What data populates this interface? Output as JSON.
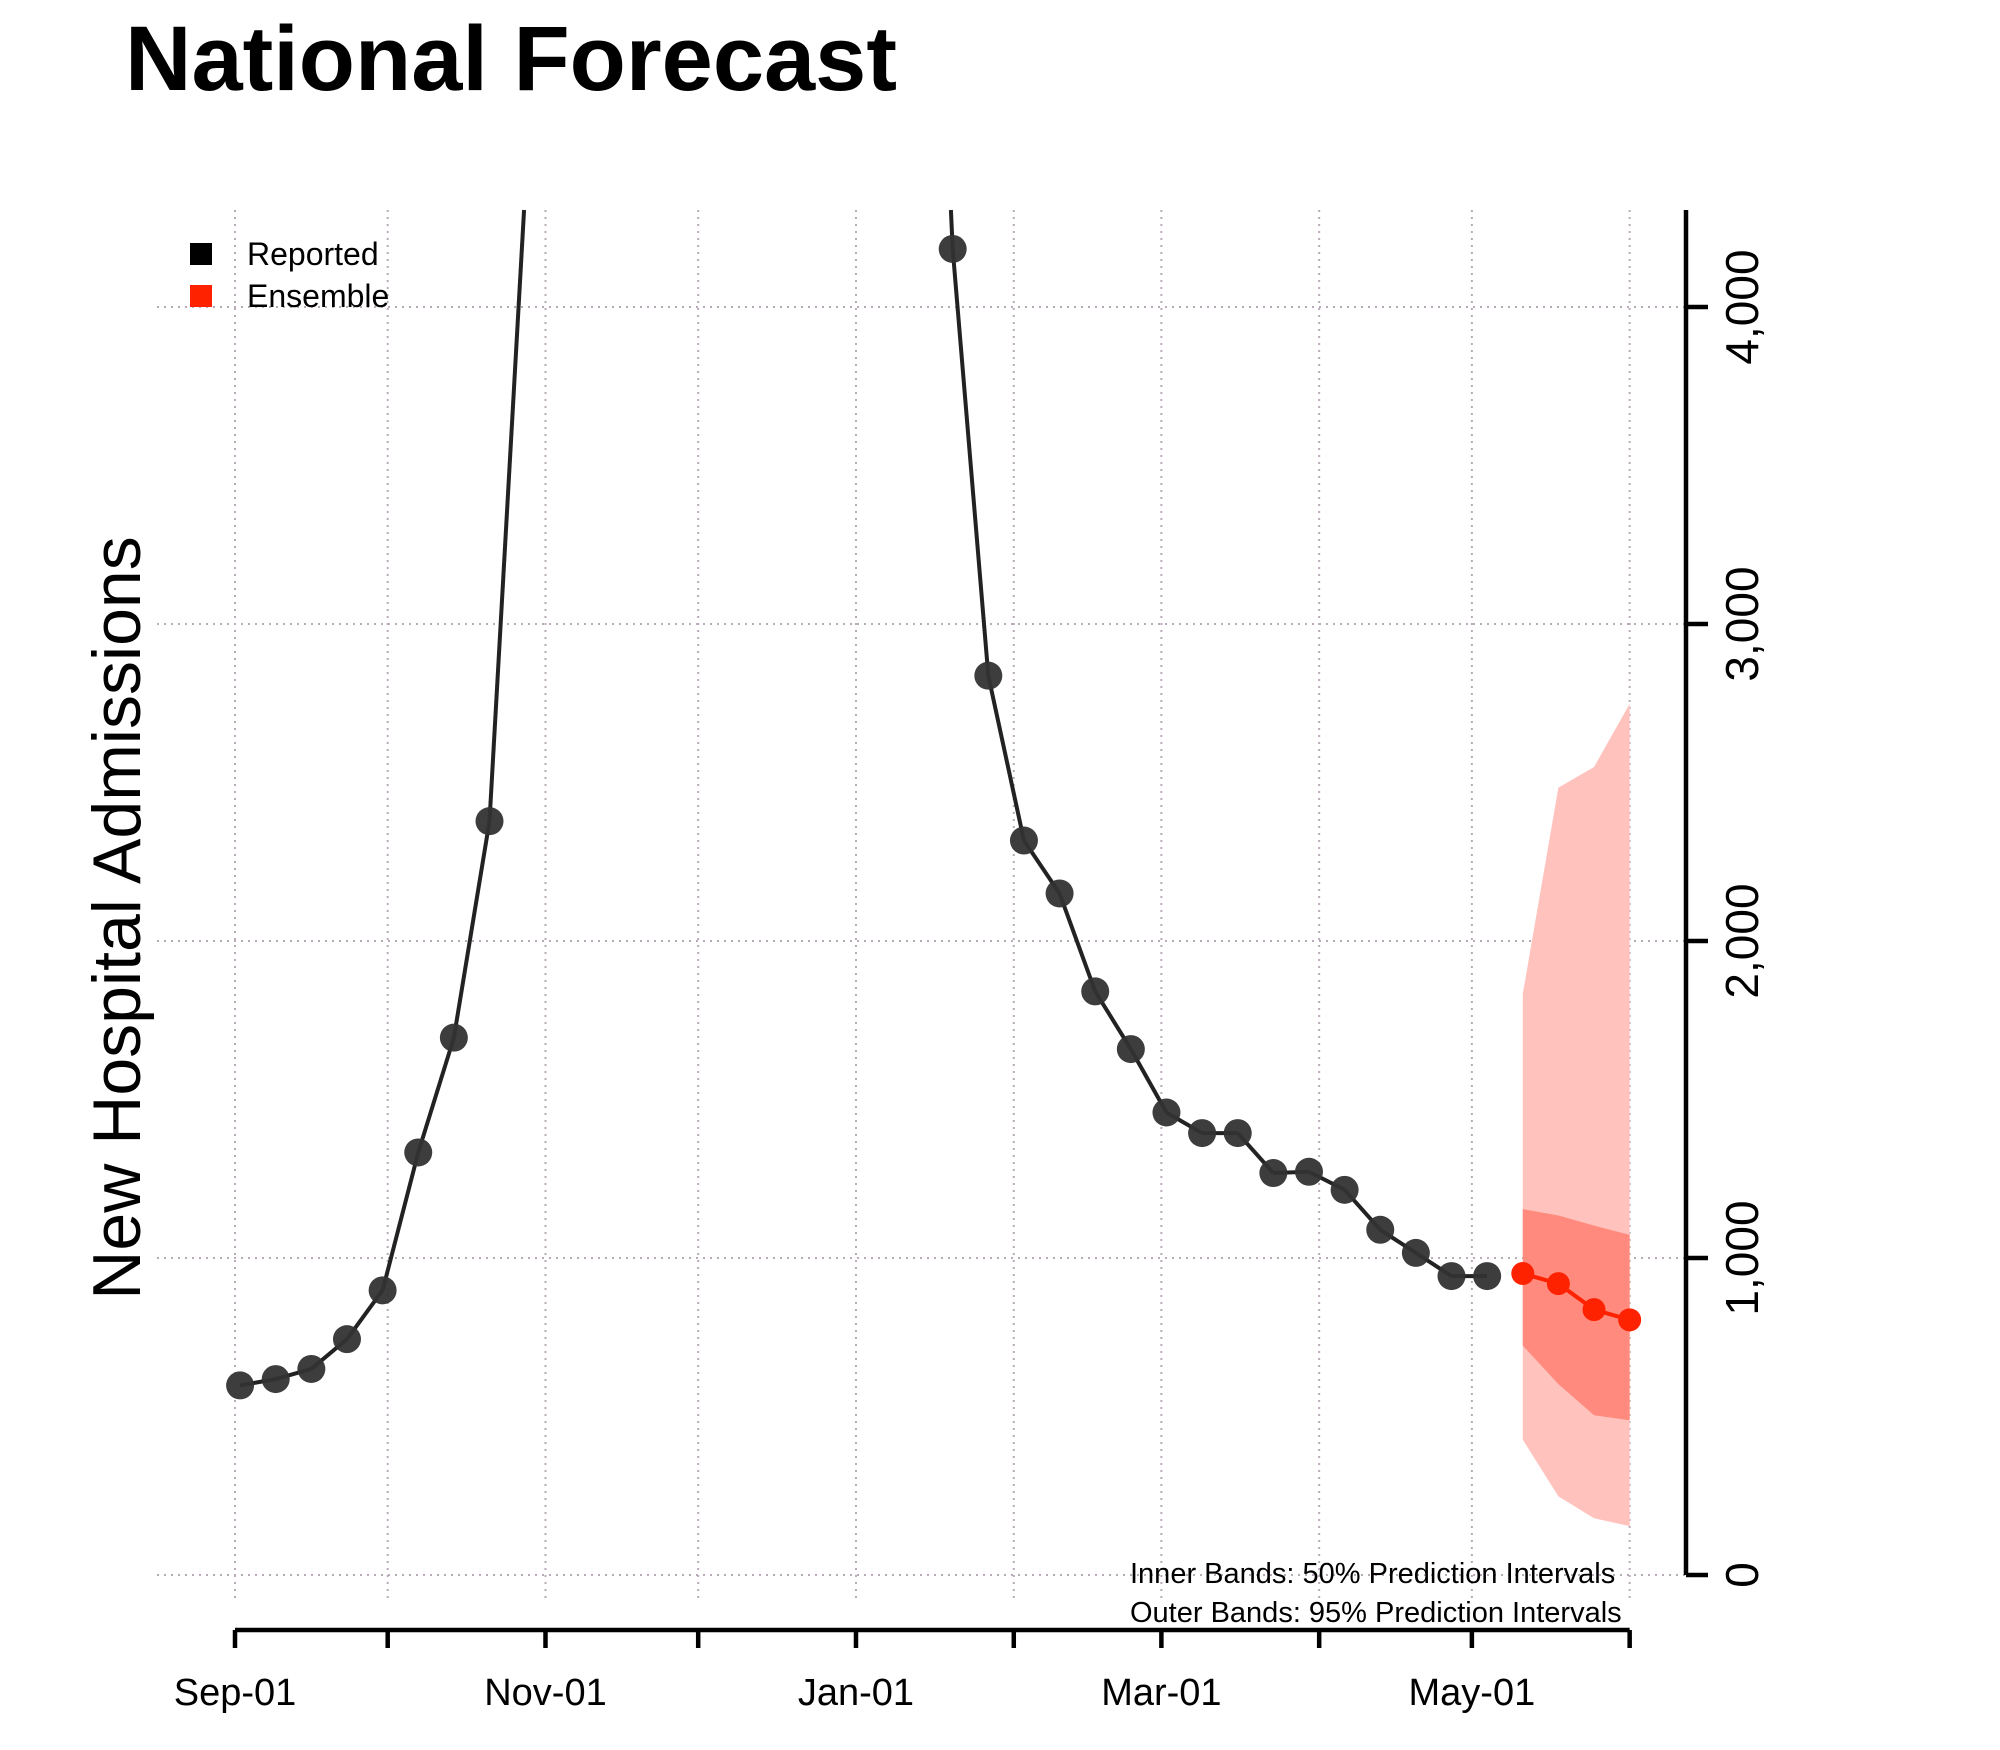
{
  "chart_data": {
    "type": "line",
    "title": "National Forecast",
    "ylabel": "New Hospital Admissions",
    "xlabel": "",
    "ylim": [
      0,
      4300
    ],
    "xlim": [
      "2023-09-01",
      "2024-06-05"
    ],
    "y_axis_side": "right",
    "y_ticks": [
      0,
      1000,
      2000,
      3000,
      4000
    ],
    "y_tick_labels": [
      "0",
      "1,000",
      "2,000",
      "3,000",
      "4,000"
    ],
    "x_ticks": [
      "2023-09-01",
      "2023-10-01",
      "2023-11-01",
      "2023-12-01",
      "2024-01-01",
      "2024-02-01",
      "2024-03-01",
      "2024-04-01",
      "2024-05-01",
      "2024-06-01"
    ],
    "x_tick_labels": [
      {
        "date": "2023-09-01",
        "label": "Sep-01"
      },
      {
        "date": "2023-11-01",
        "label": "Nov-01"
      },
      {
        "date": "2024-01-01",
        "label": "Jan-01"
      },
      {
        "date": "2024-03-01",
        "label": "Mar-01"
      },
      {
        "date": "2024-05-01",
        "label": "May-01"
      }
    ],
    "grid": true,
    "legend": {
      "placement": "top-left",
      "entries": [
        {
          "label": "Reported",
          "color": "#000000"
        },
        {
          "label": "Ensemble",
          "color": "#ff2200"
        }
      ]
    },
    "annotations": [
      "Inner Bands: 50% Prediction Intervals",
      "Outer Bands: 95% Prediction Intervals"
    ],
    "series": [
      {
        "name": "Reported",
        "color": "#333333",
        "x": [
          "2023-09-02",
          "2023-09-09",
          "2023-09-16",
          "2023-09-23",
          "2023-09-30",
          "2023-10-07",
          "2023-10-14",
          "2023-10-21",
          "2023-10-28",
          "2024-01-13",
          "2024-01-20",
          "2024-01-27",
          "2024-02-03",
          "2024-02-10",
          "2024-02-17",
          "2024-02-24",
          "2024-03-02",
          "2024-03-09",
          "2024-03-16",
          "2024-03-23",
          "2024-03-30",
          "2024-04-06",
          "2024-04-13",
          "2024-04-20",
          "2024-04-27",
          "2024-05-04"
        ],
        "values": [
          598,
          618,
          650,
          744,
          898,
          1333,
          1695,
          2378,
          null,
          null,
          4183,
          2837,
          2317,
          2150,
          1841,
          1659,
          1459,
          1394,
          1394,
          1268,
          1272,
          1215,
          1089,
          1016,
          943,
          943
        ]
      },
      {
        "name": "Ensemble",
        "color": "#ff2200",
        "x": [
          "2024-05-11",
          "2024-05-18",
          "2024-05-25",
          "2024-06-01"
        ],
        "values": [
          951,
          919,
          837,
          805
        ],
        "pi50_lower": [
          724,
          602,
          504,
          488
        ],
        "pi50_upper": [
          1154,
          1134,
          1102,
          1073
        ],
        "pi95_lower": [
          427,
          248,
          179,
          154
        ],
        "pi95_upper": [
          1833,
          2484,
          2549,
          2748
        ],
        "pi50_color": "#ff8a7d",
        "pi95_color": "#ffc2bd"
      }
    ]
  }
}
